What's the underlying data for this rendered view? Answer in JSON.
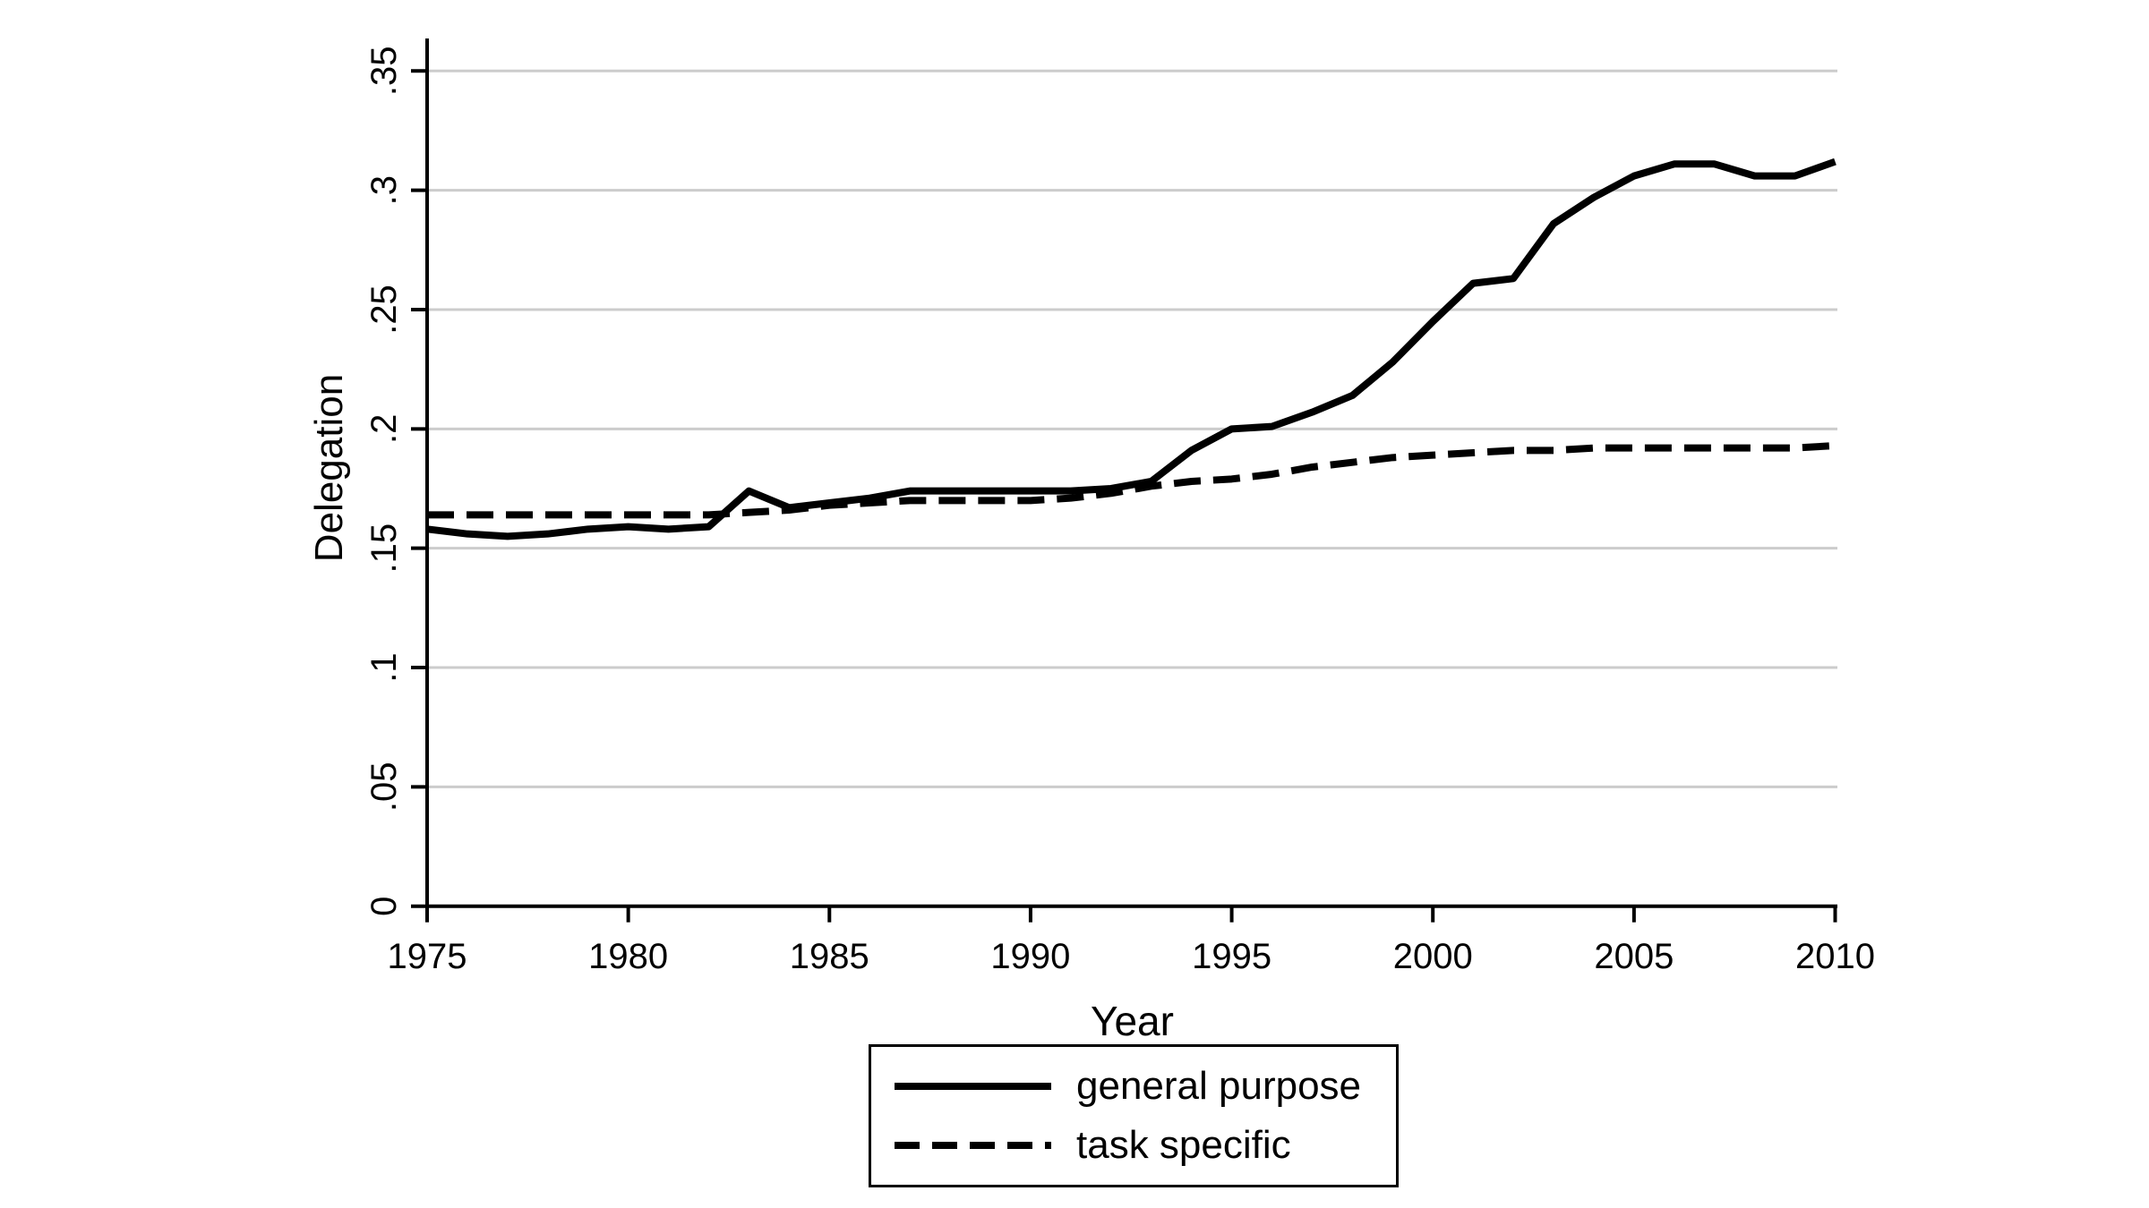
{
  "colors": {
    "background": "#ffffff",
    "axis": "#000000",
    "gridline": "#cccccc",
    "text": "#000000",
    "series_general": "#000000",
    "series_task": "#000000"
  },
  "chart_data": {
    "type": "line",
    "title": "",
    "xlabel": "Year",
    "ylabel": "Delegation",
    "xlim": [
      1975,
      2010
    ],
    "ylim": [
      0,
      0.35
    ],
    "x_ticks": [
      1975,
      1980,
      1985,
      1990,
      1995,
      2000,
      2005,
      2010
    ],
    "y_ticks": [
      0,
      0.05,
      0.1,
      0.15,
      0.2,
      0.25,
      0.3,
      0.35
    ],
    "y_tick_labels": [
      "0",
      ".05",
      ".1",
      ".15",
      ".2",
      ".25",
      ".3",
      ".35"
    ],
    "grid": "horizontal-only",
    "legend_position": "bottom-center",
    "x": [
      1975,
      1976,
      1977,
      1978,
      1979,
      1980,
      1981,
      1982,
      1983,
      1984,
      1985,
      1986,
      1987,
      1988,
      1989,
      1990,
      1991,
      1992,
      1993,
      1994,
      1995,
      1996,
      1997,
      1998,
      1999,
      2000,
      2001,
      2002,
      2003,
      2004,
      2005,
      2006,
      2007,
      2008,
      2009,
      2010
    ],
    "series": [
      {
        "name": "general purpose",
        "style": "solid",
        "color": "#000000",
        "values": [
          0.158,
          0.156,
          0.155,
          0.156,
          0.158,
          0.159,
          0.158,
          0.159,
          0.174,
          0.167,
          0.169,
          0.171,
          0.174,
          0.174,
          0.174,
          0.174,
          0.174,
          0.175,
          0.178,
          0.191,
          0.2,
          0.201,
          0.207,
          0.214,
          0.228,
          0.245,
          0.261,
          0.263,
          0.286,
          0.297,
          0.306,
          0.311,
          0.311,
          0.306,
          0.306,
          0.312
        ]
      },
      {
        "name": "task specific",
        "style": "dashed",
        "color": "#000000",
        "values": [
          0.164,
          0.164,
          0.164,
          0.164,
          0.164,
          0.164,
          0.164,
          0.164,
          0.165,
          0.166,
          0.168,
          0.169,
          0.17,
          0.17,
          0.17,
          0.17,
          0.171,
          0.173,
          0.176,
          0.178,
          0.179,
          0.181,
          0.184,
          0.186,
          0.188,
          0.189,
          0.19,
          0.191,
          0.191,
          0.192,
          0.192,
          0.192,
          0.192,
          0.192,
          0.192,
          0.193
        ]
      }
    ]
  }
}
